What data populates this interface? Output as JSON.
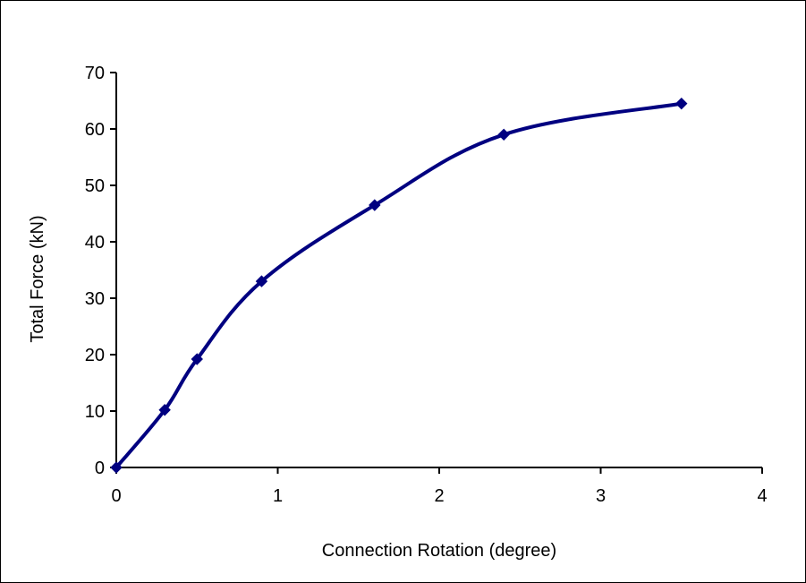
{
  "chart_data": {
    "type": "line",
    "title": "",
    "xlabel": "Connection Rotation (degree)",
    "ylabel": "Total Force (kN)",
    "xlim": [
      0,
      4
    ],
    "ylim": [
      0,
      70
    ],
    "x_ticks": [
      0,
      1,
      2,
      3,
      4
    ],
    "x_tick_labels": [
      "0",
      "1",
      "2",
      "3",
      "4"
    ],
    "y_ticks": [
      0,
      10,
      20,
      30,
      40,
      50,
      60,
      70
    ],
    "y_tick_labels": [
      "0",
      "10",
      "20",
      "30",
      "40",
      "50",
      "60",
      "70"
    ],
    "grid": false,
    "legend": "none",
    "series": [
      {
        "x": [
          0,
          0.3,
          0.5,
          0.9,
          1.6,
          2.4,
          3.5
        ],
        "y": [
          0,
          10.2,
          19.2,
          33,
          46.5,
          59,
          64.5
        ],
        "color": "#000080",
        "marker": "diamond",
        "smooth": true
      }
    ]
  }
}
